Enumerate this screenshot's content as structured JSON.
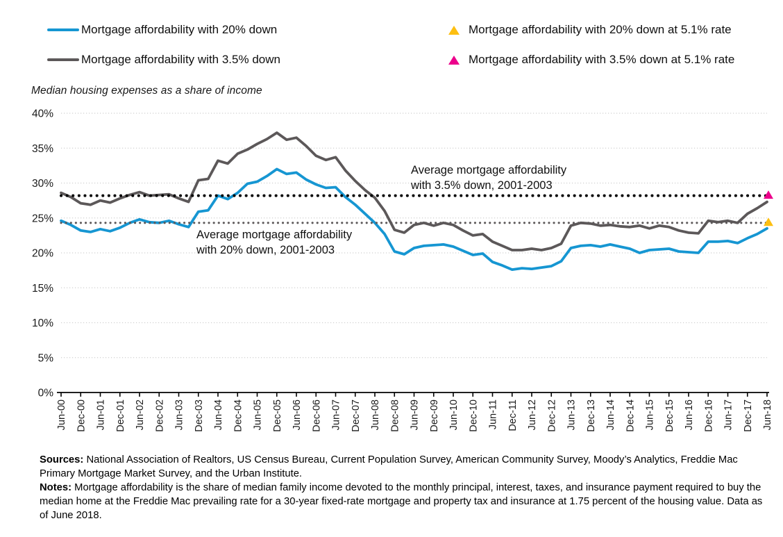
{
  "legend": {
    "items": [
      {
        "label": "Mortgage affordability with 20% down",
        "type": "line",
        "color": "#1696d2"
      },
      {
        "label": "Mortgage affordability with 3.5% down",
        "type": "line",
        "color": "#5c5859"
      },
      {
        "label": "Mortgage affordability with 20% down at 5.1% rate",
        "type": "triangle",
        "color": "#fdbf11"
      },
      {
        "label": "Mortgage affordability with 3.5% down at 5.1% rate",
        "type": "triangle",
        "color": "#ec008b"
      }
    ]
  },
  "axis_title": "Median housing expenses as a share of income",
  "annotations": {
    "avg35": {
      "line1": "Average mortgage affordability",
      "line2": "with 3.5% down, 2001-2003"
    },
    "avg20": {
      "line1": "Average mortgage affordability",
      "line2": "with 20% down, 2001-2003"
    }
  },
  "footer": {
    "sources_label": "Sources:",
    "sources_text": " National Association of Realtors, US Census Bureau, Current Population Survey, American Community Survey, Moody’s Analytics, Freddie Mac Primary Mortgage Market Survey, and the Urban Institute.",
    "notes_label": "Notes:",
    "notes_text": " Mortgage affordability is the share of median family income devoted to the monthly principal, interest, taxes, and insurance payment required to buy the median home at the Freddie Mac prevailing rate for a 30-year fixed-rate mortgage and property tax and insurance at 1.75 percent of the housing value. Data as of June 2018."
  },
  "chart_data": {
    "type": "line",
    "title": "",
    "ylabel": "Median housing expenses as a share of income",
    "ylim": [
      0,
      40
    ],
    "grid": "horizontal-dotted",
    "legend_position": "top",
    "y_ticks": [
      "0%",
      "5%",
      "10%",
      "15%",
      "20%",
      "25%",
      "30%",
      "35%",
      "40%"
    ],
    "x_axis_tick_labels": [
      "Jun-00",
      "Dec-00",
      "Jun-01",
      "Dec-01",
      "Jun-02",
      "Dec-02",
      "Jun-03",
      "Dec-03",
      "Jun-04",
      "Dec-04",
      "Jun-05",
      "Dec-05",
      "Jun-06",
      "Dec-06",
      "Jun-07",
      "Dec-07",
      "Jun-08",
      "Dec-08",
      "Jun-09",
      "Dec-09",
      "Jun-10",
      "Dec-10",
      "Jun-11",
      "Dec-11",
      "Jun-12",
      "Dec-12",
      "Jun-13",
      "Dec-13",
      "Jun-14",
      "Dec-14",
      "Jun-15",
      "Dec-15",
      "Jun-16",
      "Dec-16",
      "Jun-17",
      "Dec-17",
      "Jun-18"
    ],
    "x": [
      "Jun-00",
      "Sep-00",
      "Dec-00",
      "Mar-01",
      "Jun-01",
      "Sep-01",
      "Dec-01",
      "Mar-02",
      "Jun-02",
      "Sep-02",
      "Dec-02",
      "Mar-03",
      "Jun-03",
      "Sep-03",
      "Dec-03",
      "Mar-04",
      "Jun-04",
      "Sep-04",
      "Dec-04",
      "Mar-05",
      "Jun-05",
      "Sep-05",
      "Dec-05",
      "Mar-06",
      "Jun-06",
      "Sep-06",
      "Dec-06",
      "Mar-07",
      "Jun-07",
      "Sep-07",
      "Dec-07",
      "Mar-08",
      "Jun-08",
      "Sep-08",
      "Dec-08",
      "Mar-09",
      "Jun-09",
      "Sep-09",
      "Dec-09",
      "Mar-10",
      "Jun-10",
      "Sep-10",
      "Dec-10",
      "Mar-11",
      "Jun-11",
      "Sep-11",
      "Dec-11",
      "Mar-12",
      "Jun-12",
      "Sep-12",
      "Dec-12",
      "Mar-13",
      "Jun-13",
      "Sep-13",
      "Dec-13",
      "Mar-14",
      "Jun-14",
      "Sep-14",
      "Dec-14",
      "Mar-15",
      "Jun-15",
      "Sep-15",
      "Dec-15",
      "Mar-16",
      "Jun-16",
      "Sep-16",
      "Dec-16",
      "Mar-17",
      "Jun-17",
      "Sep-17",
      "Dec-17",
      "Mar-18",
      "Jun-18"
    ],
    "series": [
      {
        "name": "Mortgage affordability with 20% down",
        "color": "#1696d2",
        "values": [
          24.6,
          24.0,
          23.2,
          23.0,
          23.4,
          23.1,
          23.6,
          24.3,
          24.8,
          24.4,
          24.3,
          24.6,
          24.1,
          23.7,
          25.9,
          26.1,
          28.2,
          27.7,
          28.6,
          29.9,
          30.2,
          31.0,
          32.0,
          31.3,
          31.5,
          30.5,
          29.8,
          29.3,
          29.4,
          28.0,
          26.9,
          25.6,
          24.3,
          22.7,
          20.2,
          19.8,
          20.7,
          21.0,
          21.1,
          21.2,
          20.9,
          20.3,
          19.7,
          19.9,
          18.7,
          18.2,
          17.6,
          17.8,
          17.7,
          17.9,
          18.1,
          18.8,
          20.7,
          21.0,
          21.1,
          20.9,
          21.2,
          20.9,
          20.6,
          20.0,
          20.4,
          20.5,
          20.6,
          20.2,
          20.1,
          20.0,
          21.6,
          21.6,
          21.7,
          21.4,
          22.1,
          22.7,
          23.5
        ]
      },
      {
        "name": "Mortgage affordability with 3.5% down",
        "color": "#5c5859",
        "values": [
          28.6,
          28.0,
          27.1,
          26.9,
          27.5,
          27.2,
          27.8,
          28.3,
          28.7,
          28.2,
          28.3,
          28.4,
          27.8,
          27.3,
          30.4,
          30.6,
          33.2,
          32.8,
          34.2,
          34.8,
          35.6,
          36.3,
          37.2,
          36.2,
          36.5,
          35.3,
          33.9,
          33.3,
          33.7,
          31.8,
          30.3,
          29.0,
          27.9,
          26.0,
          23.3,
          22.9,
          24.0,
          24.3,
          23.9,
          24.3,
          24.0,
          23.2,
          22.5,
          22.7,
          21.6,
          21.0,
          20.4,
          20.4,
          20.6,
          20.4,
          20.7,
          21.3,
          23.9,
          24.3,
          24.2,
          23.9,
          24.0,
          23.8,
          23.7,
          23.9,
          23.5,
          23.9,
          23.7,
          23.2,
          22.9,
          22.8,
          24.6,
          24.4,
          24.6,
          24.3,
          25.6,
          26.4,
          27.3
        ]
      }
    ],
    "reference_lines": [
      {
        "label": "Average mortgage affordability with 3.5% down, 2001-2003",
        "value": 28.2,
        "style": "dotted",
        "color": "#000000"
      },
      {
        "label": "Average mortgage affordability with 20% down, 2001-2003",
        "value": 24.3,
        "style": "dotted",
        "color": "#5c5859"
      }
    ],
    "point_markers": [
      {
        "name": "Mortgage affordability with 20% down at 5.1% rate",
        "x": "Jun-18",
        "value": 24.3,
        "shape": "triangle",
        "color": "#fdbf11"
      },
      {
        "name": "Mortgage affordability with 3.5% down at 5.1% rate",
        "x": "Jun-18",
        "value": 28.2,
        "shape": "triangle",
        "color": "#ec008b"
      }
    ]
  },
  "colors": {
    "blue_line": "#1696d2",
    "gray_line": "#5c5859",
    "yellow_marker": "#fdbf11",
    "pink_marker": "#ec008b",
    "gridline": "#cfcfcf",
    "axis": "#000000",
    "text": "#111111"
  }
}
